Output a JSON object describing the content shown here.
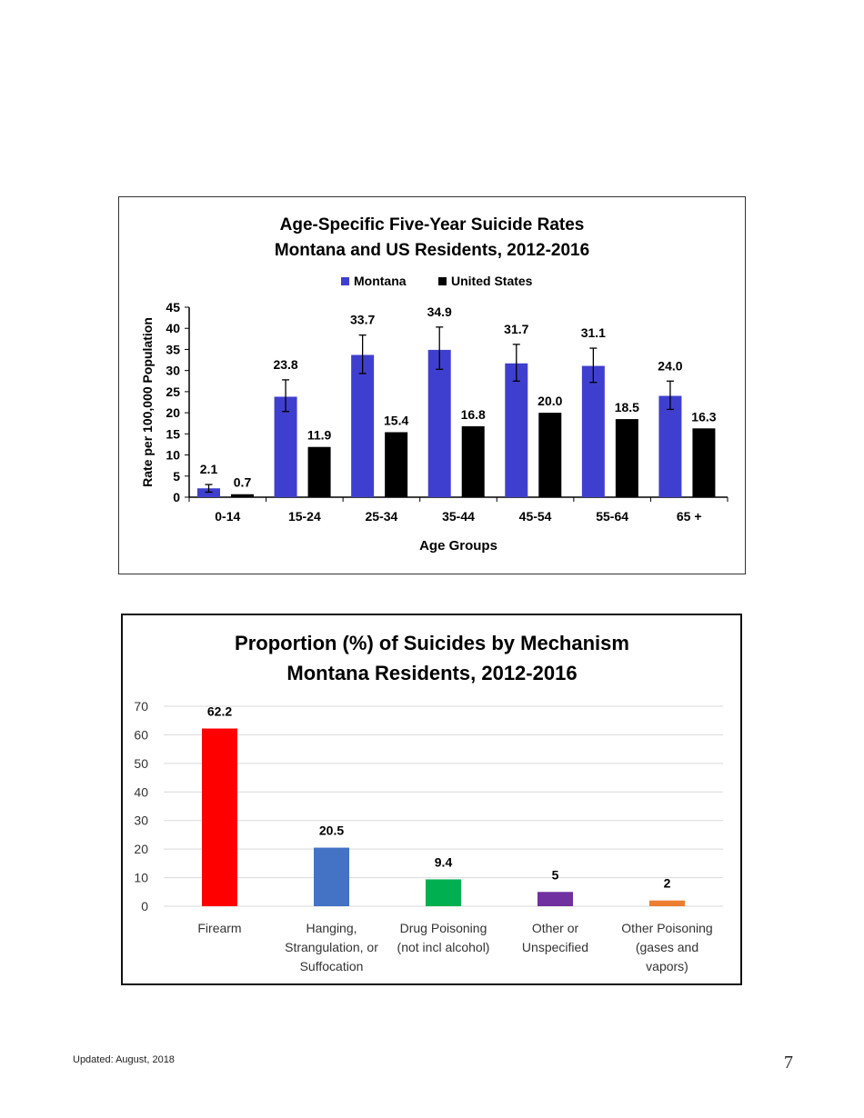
{
  "page": {
    "footer_updated": "Updated: August, 2018",
    "page_number": "7"
  },
  "chart_data": [
    {
      "type": "bar",
      "title": "Age-Specific Five-Year Suicide Rates",
      "subtitle": "Montana and US Residents, 2012-2016",
      "xlabel": "Age Groups",
      "ylabel": "Rate per 100,000 Population",
      "ylim": [
        0,
        45
      ],
      "yticks": [
        0,
        5,
        10,
        15,
        20,
        25,
        30,
        35,
        40,
        45
      ],
      "grid": false,
      "legend_position": "top",
      "categories": [
        "0-14",
        "15-24",
        "25-34",
        "35-44",
        "45-54",
        "55-64",
        "65 +"
      ],
      "series": [
        {
          "name": "Montana",
          "color": "#3f3fcf",
          "values": [
            2.1,
            23.8,
            33.7,
            34.9,
            31.7,
            31.1,
            24.0
          ],
          "labels": [
            "2.1",
            "23.8",
            "33.7",
            "34.9",
            "31.7",
            "31.1",
            "24.0"
          ],
          "error_low": [
            1.2,
            20.3,
            29.3,
            30.3,
            27.5,
            27.2,
            20.8
          ],
          "error_high": [
            3.0,
            27.8,
            38.4,
            40.3,
            36.2,
            35.3,
            27.5
          ]
        },
        {
          "name": "United States",
          "color": "#000000",
          "values": [
            0.7,
            11.9,
            15.4,
            16.8,
            20.0,
            18.5,
            16.3
          ],
          "labels": [
            "0.7",
            "11.9",
            "15.4",
            "16.8",
            "20.0",
            "18.5",
            "16.3"
          ]
        }
      ]
    },
    {
      "type": "bar",
      "title": "Proportion (%) of Suicides by Mechanism",
      "subtitle": "Montana Residents, 2012-2016",
      "xlabel": "",
      "ylabel": "",
      "ylim": [
        0,
        70
      ],
      "yticks": [
        0,
        10,
        20,
        30,
        40,
        50,
        60,
        70
      ],
      "grid": true,
      "legend_position": "none",
      "categories": [
        [
          "Firearm"
        ],
        [
          "Hanging,",
          "Strangulation, or",
          "Suffocation"
        ],
        [
          "Drug Poisoning",
          "(not incl alcohol)"
        ],
        [
          "Other or",
          "Unspecified"
        ],
        [
          "Other Poisoning",
          "(gases and",
          "vapors)"
        ]
      ],
      "values": [
        62.2,
        20.5,
        9.4,
        5,
        2
      ],
      "labels": [
        "62.2",
        "20.5",
        "9.4",
        "5",
        "2"
      ],
      "colors": [
        "#ff0000",
        "#4472c4",
        "#00b050",
        "#7030a0",
        "#ed7d31"
      ]
    }
  ]
}
